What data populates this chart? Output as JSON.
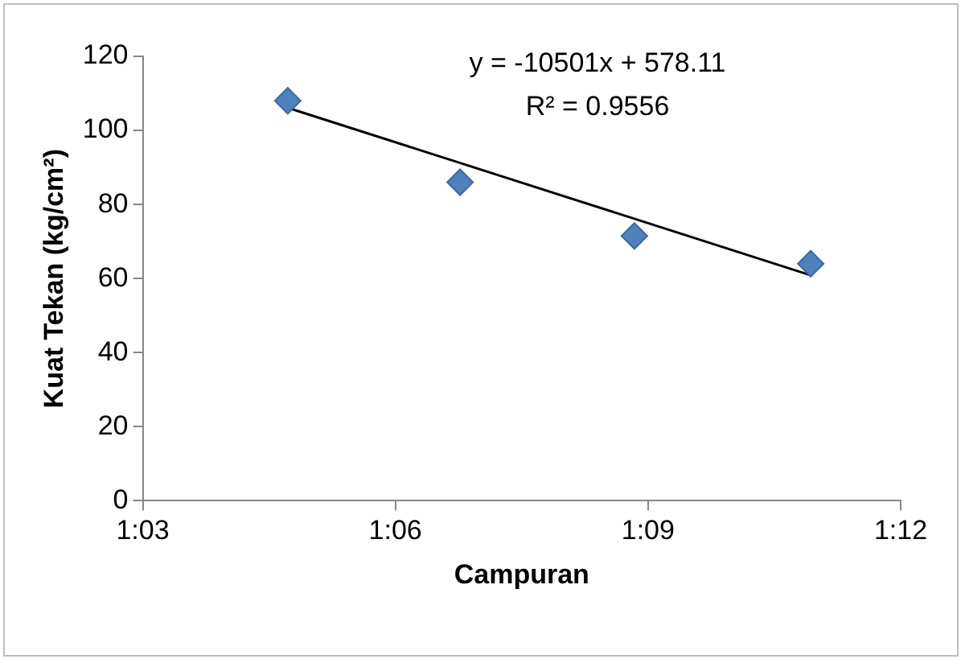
{
  "chart_data": {
    "type": "scatter",
    "xlabel": "Campuran",
    "ylabel": "Kuat Tekan (kg/cm²)",
    "series": [
      {
        "color": "#4f81bd",
        "x": [
          1.0787,
          1.1128,
          1.1473,
          1.1822
        ],
        "values": [
          108,
          86,
          71.5,
          64
        ],
        "marker": "diamond"
      },
      {
        "type": "line",
        "color": "#000000",
        "x": [
          1.0787,
          1.1822
        ],
        "values": [
          106.1,
          60.9
        ],
        "marker": "none"
      }
    ],
    "xlim": [
      1.05,
      1.2
    ],
    "xticks": [
      {
        "value": 1.05,
        "label": "1:03"
      },
      {
        "value": 1.1,
        "label": "1:06"
      },
      {
        "value": 1.15,
        "label": "1:09"
      },
      {
        "value": 1.2,
        "label": "1:12"
      }
    ],
    "ylim": [
      0,
      120
    ],
    "yticks": [
      0,
      20,
      40,
      60,
      80,
      100,
      120
    ],
    "annotations": [
      "y = -10501x + 578.11",
      "R² = 0.9556"
    ],
    "grid": false,
    "legend": false
  }
}
